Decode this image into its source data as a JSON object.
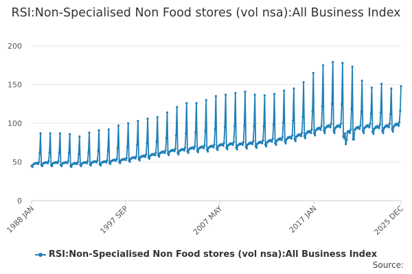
{
  "chart_data": {
    "type": "line",
    "title": "RSI:Non-Specialised Non Food stores (vol nsa):All Business Index",
    "xlabel": "",
    "ylabel": "",
    "ylim": [
      0,
      200
    ],
    "yticks": [
      0,
      50,
      100,
      150,
      200
    ],
    "x_range": [
      "1988 JAN",
      "2025 DEC"
    ],
    "x_tick_labels": [
      "1988 JAN",
      "1997 SEP",
      "2007 MAY",
      "2017 JAN",
      "2025 DEC"
    ],
    "frequency": "monthly",
    "grid": "horizontal",
    "legend_position": "bottom",
    "series": [
      {
        "name": "RSI:Non-Specialised Non Food stores (vol nsa):All Business Index",
        "color": "#1f7fb8",
        "december_peaks": [
          {
            "year": 1988,
            "value": 87
          },
          {
            "year": 1989,
            "value": 87
          },
          {
            "year": 1990,
            "value": 87
          },
          {
            "year": 1991,
            "value": 86
          },
          {
            "year": 1992,
            "value": 83
          },
          {
            "year": 1993,
            "value": 88
          },
          {
            "year": 1994,
            "value": 91
          },
          {
            "year": 1995,
            "value": 92
          },
          {
            "year": 1996,
            "value": 97
          },
          {
            "year": 1997,
            "value": 100
          },
          {
            "year": 1998,
            "value": 103
          },
          {
            "year": 1999,
            "value": 106
          },
          {
            "year": 2000,
            "value": 108
          },
          {
            "year": 2001,
            "value": 114
          },
          {
            "year": 2002,
            "value": 121
          },
          {
            "year": 2003,
            "value": 126
          },
          {
            "year": 2004,
            "value": 126
          },
          {
            "year": 2005,
            "value": 130
          },
          {
            "year": 2006,
            "value": 135
          },
          {
            "year": 2007,
            "value": 137
          },
          {
            "year": 2008,
            "value": 139
          },
          {
            "year": 2009,
            "value": 141
          },
          {
            "year": 2010,
            "value": 137
          },
          {
            "year": 2011,
            "value": 136
          },
          {
            "year": 2012,
            "value": 138
          },
          {
            "year": 2013,
            "value": 142
          },
          {
            "year": 2014,
            "value": 145
          },
          {
            "year": 2015,
            "value": 153
          },
          {
            "year": 2016,
            "value": 165
          },
          {
            "year": 2017,
            "value": 175
          },
          {
            "year": 2018,
            "value": 179
          },
          {
            "year": 2019,
            "value": 178
          },
          {
            "year": 2020,
            "value": 173
          },
          {
            "year": 2021,
            "value": 155
          },
          {
            "year": 2022,
            "value": 146
          },
          {
            "year": 2023,
            "value": 151
          },
          {
            "year": 2024,
            "value": 145
          },
          {
            "year": 2025,
            "value": 152
          }
        ],
        "annual_baseline": [
          {
            "year": 1988,
            "value": 46
          },
          {
            "year": 1989,
            "value": 47
          },
          {
            "year": 1990,
            "value": 47
          },
          {
            "year": 1991,
            "value": 47
          },
          {
            "year": 1992,
            "value": 46
          },
          {
            "year": 1993,
            "value": 47
          },
          {
            "year": 1994,
            "value": 48
          },
          {
            "year": 1995,
            "value": 48
          },
          {
            "year": 1996,
            "value": 50
          },
          {
            "year": 1997,
            "value": 51
          },
          {
            "year": 1998,
            "value": 53
          },
          {
            "year": 1999,
            "value": 55
          },
          {
            "year": 2000,
            "value": 57
          },
          {
            "year": 2001,
            "value": 60
          },
          {
            "year": 2002,
            "value": 62
          },
          {
            "year": 2003,
            "value": 63
          },
          {
            "year": 2004,
            "value": 65
          },
          {
            "year": 2005,
            "value": 66
          },
          {
            "year": 2006,
            "value": 67
          },
          {
            "year": 2007,
            "value": 69
          },
          {
            "year": 2008,
            "value": 70
          },
          {
            "year": 2009,
            "value": 70
          },
          {
            "year": 2010,
            "value": 71
          },
          {
            "year": 2011,
            "value": 72
          },
          {
            "year": 2012,
            "value": 74
          },
          {
            "year": 2013,
            "value": 76
          },
          {
            "year": 2014,
            "value": 78
          },
          {
            "year": 2015,
            "value": 81
          },
          {
            "year": 2016,
            "value": 85
          },
          {
            "year": 2017,
            "value": 89
          },
          {
            "year": 2018,
            "value": 92
          },
          {
            "year": 2019,
            "value": 92
          },
          {
            "year": 2020,
            "value": 85
          },
          {
            "year": 2021,
            "value": 90
          },
          {
            "year": 2022,
            "value": 92
          },
          {
            "year": 2023,
            "value": 91
          },
          {
            "year": 2024,
            "value": 92
          },
          {
            "year": 2025,
            "value": 94
          }
        ],
        "last_value": 148
      }
    ]
  },
  "source_label": "Source:"
}
